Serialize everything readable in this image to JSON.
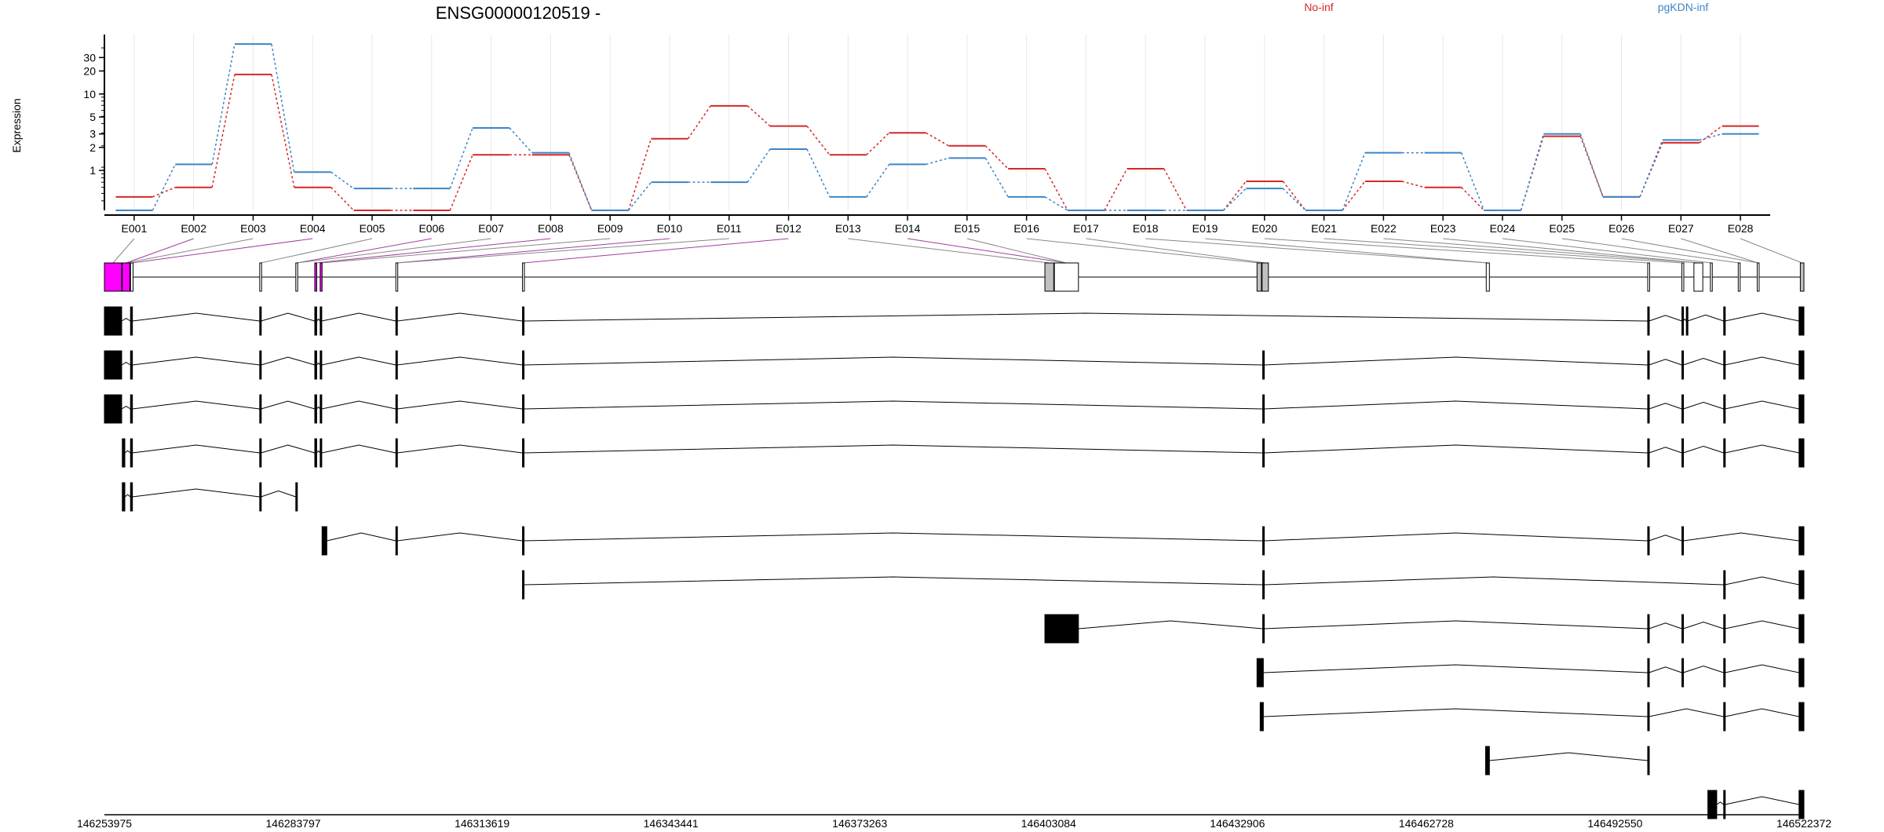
{
  "chart_data": {
    "type": "line",
    "title": "ENSG00000120519 -",
    "ylabel": "Expression",
    "y_scale": "log",
    "y_ticks": [
      1,
      2,
      3,
      5,
      10,
      20,
      30
    ],
    "categories": [
      "E001",
      "E002",
      "E003",
      "E004",
      "E005",
      "E006",
      "E007",
      "E008",
      "E009",
      "E010",
      "E011",
      "E012",
      "E013",
      "E014",
      "E015",
      "E016",
      "E017",
      "E018",
      "E019",
      "E020",
      "E021",
      "E022",
      "E023",
      "E024",
      "E025",
      "E026",
      "E027",
      "E028"
    ],
    "series": [
      {
        "name": "No-inf",
        "color": "#d62728",
        "values": [
          0.45,
          0.6,
          18,
          0.6,
          0.3,
          0.3,
          1.6,
          1.6,
          0.3,
          2.6,
          7.0,
          3.8,
          1.6,
          3.1,
          2.1,
          1.05,
          0.3,
          1.05,
          0.3,
          0.72,
          0.3,
          0.72,
          0.6,
          0.3,
          2.8,
          0.45,
          2.3,
          3.8
        ]
      },
      {
        "name": "pgKDN-inf",
        "color": "#3d85c6",
        "values": [
          0.3,
          1.2,
          45,
          0.95,
          0.58,
          0.58,
          3.6,
          1.7,
          0.3,
          0.7,
          0.7,
          1.9,
          0.45,
          1.2,
          1.45,
          0.45,
          0.3,
          0.3,
          0.3,
          0.58,
          0.3,
          1.7,
          1.7,
          0.3,
          3.0,
          0.45,
          2.5,
          3.0
        ]
      }
    ],
    "genomic_axis_ticks": [
      "146253975",
      "146283797",
      "146313619",
      "146343441",
      "146373263",
      "146403084",
      "146432906",
      "146462728",
      "146492550",
      "146522372"
    ],
    "genomic_range": [
      146253975,
      146522372
    ],
    "exon_starts": [
      146253975,
      146256800,
      146258100,
      146278500,
      146284200,
      146287200,
      146288050,
      146300000,
      146320000,
      146402500,
      146404000,
      146436000,
      146436800,
      146472200,
      146497700,
      146503100,
      146505000,
      146507600,
      146512000,
      146515000,
      146521800
    ],
    "exon_ends": [
      146256700,
      146258000,
      146258500,
      146278800,
      146284500,
      146287500,
      146288350,
      146300300,
      146320300,
      146403900,
      146407800,
      146436700,
      146437800,
      146472700,
      146498000,
      146503400,
      146506400,
      146507900,
      146512300,
      146515300,
      146522372
    ],
    "flag_exon_fill": [
      "#ff00ff",
      "#ff00ff",
      "#ffffff",
      "#ffffff",
      "#ffffff",
      "#ff00ff",
      "#ff00ff",
      "#ffffff",
      "#ffffff",
      "#c0c0c0",
      "#ffffff",
      "#c0c0c0",
      "#c0c0c0",
      "#ffffff",
      "#ffffff",
      "#ffffff",
      "#ffffff",
      "#ffffff",
      "#ffffff",
      "#ffffff",
      "#c0c0c0"
    ],
    "transcripts": [
      [
        [
          146253975,
          146256700
        ],
        [
          146258100,
          146258400
        ],
        [
          146278500,
          146278700
        ],
        [
          146287200,
          146287500
        ],
        [
          146288050,
          146288300
        ],
        [
          146300000,
          146300200
        ],
        [
          146320000,
          146320200
        ],
        [
          146497700,
          146497900
        ],
        [
          146503100,
          146503300
        ],
        [
          146503800,
          146504000
        ],
        [
          146509700,
          146509900
        ],
        [
          146521600,
          146522372
        ]
      ],
      [
        [
          146253975,
          146256700
        ],
        [
          146258100,
          146258400
        ],
        [
          146278500,
          146278700
        ],
        [
          146287200,
          146287500
        ],
        [
          146288050,
          146288300
        ],
        [
          146300000,
          146300200
        ],
        [
          146320000,
          146320200
        ],
        [
          146436900,
          146437100
        ],
        [
          146497700,
          146497900
        ],
        [
          146503100,
          146503300
        ],
        [
          146509700,
          146509900
        ],
        [
          146521600,
          146522372
        ]
      ],
      [
        [
          146253975,
          146256700
        ],
        [
          146258100,
          146258400
        ],
        [
          146278500,
          146278700
        ],
        [
          146287200,
          146287500
        ],
        [
          146288050,
          146288300
        ],
        [
          146300000,
          146300200
        ],
        [
          146320000,
          146320200
        ],
        [
          146436900,
          146437100
        ],
        [
          146497700,
          146497900
        ],
        [
          146503100,
          146503300
        ],
        [
          146509700,
          146509900
        ],
        [
          146521600,
          146522372
        ]
      ],
      [
        [
          146256800,
          146257200
        ],
        [
          146258100,
          146258400
        ],
        [
          146278500,
          146278700
        ],
        [
          146287200,
          146287500
        ],
        [
          146288050,
          146288300
        ],
        [
          146300000,
          146300200
        ],
        [
          146320000,
          146320200
        ],
        [
          146436900,
          146437100
        ],
        [
          146497700,
          146497900
        ],
        [
          146503100,
          146503300
        ],
        [
          146509700,
          146509900
        ],
        [
          146521600,
          146522372
        ]
      ],
      [
        [
          146256800,
          146257200
        ],
        [
          146258100,
          146258400
        ],
        [
          146278500,
          146278700
        ],
        [
          146284200,
          146284400
        ]
      ],
      [
        [
          146288350,
          146289100
        ],
        [
          146300000,
          146300200
        ],
        [
          146320000,
          146320200
        ],
        [
          146436900,
          146437100
        ],
        [
          146497700,
          146497900
        ],
        [
          146503100,
          146503300
        ],
        [
          146521600,
          146522372
        ]
      ],
      [
        [
          146320000,
          146320200
        ],
        [
          146436900,
          146437100
        ],
        [
          146509700,
          146509900
        ],
        [
          146521600,
          146522372
        ]
      ],
      [
        [
          146402500,
          146407800
        ],
        [
          146436900,
          146437100
        ],
        [
          146497700,
          146497900
        ],
        [
          146503100,
          146503300
        ],
        [
          146509700,
          146509900
        ],
        [
          146521600,
          146522372
        ]
      ],
      [
        [
          146436000,
          146437000
        ],
        [
          146497700,
          146497900
        ],
        [
          146503100,
          146503300
        ],
        [
          146509700,
          146509900
        ],
        [
          146521600,
          146522372
        ]
      ],
      [
        [
          146436500,
          146437000
        ],
        [
          146497700,
          146497900
        ],
        [
          146509700,
          146509900
        ],
        [
          146521600,
          146522372
        ]
      ],
      [
        [
          146472100,
          146472700
        ],
        [
          146497700,
          146497900
        ]
      ],
      [
        [
          146507200,
          146508600
        ],
        [
          146509700,
          146509900
        ],
        [
          146521600,
          146522372
        ]
      ]
    ]
  }
}
